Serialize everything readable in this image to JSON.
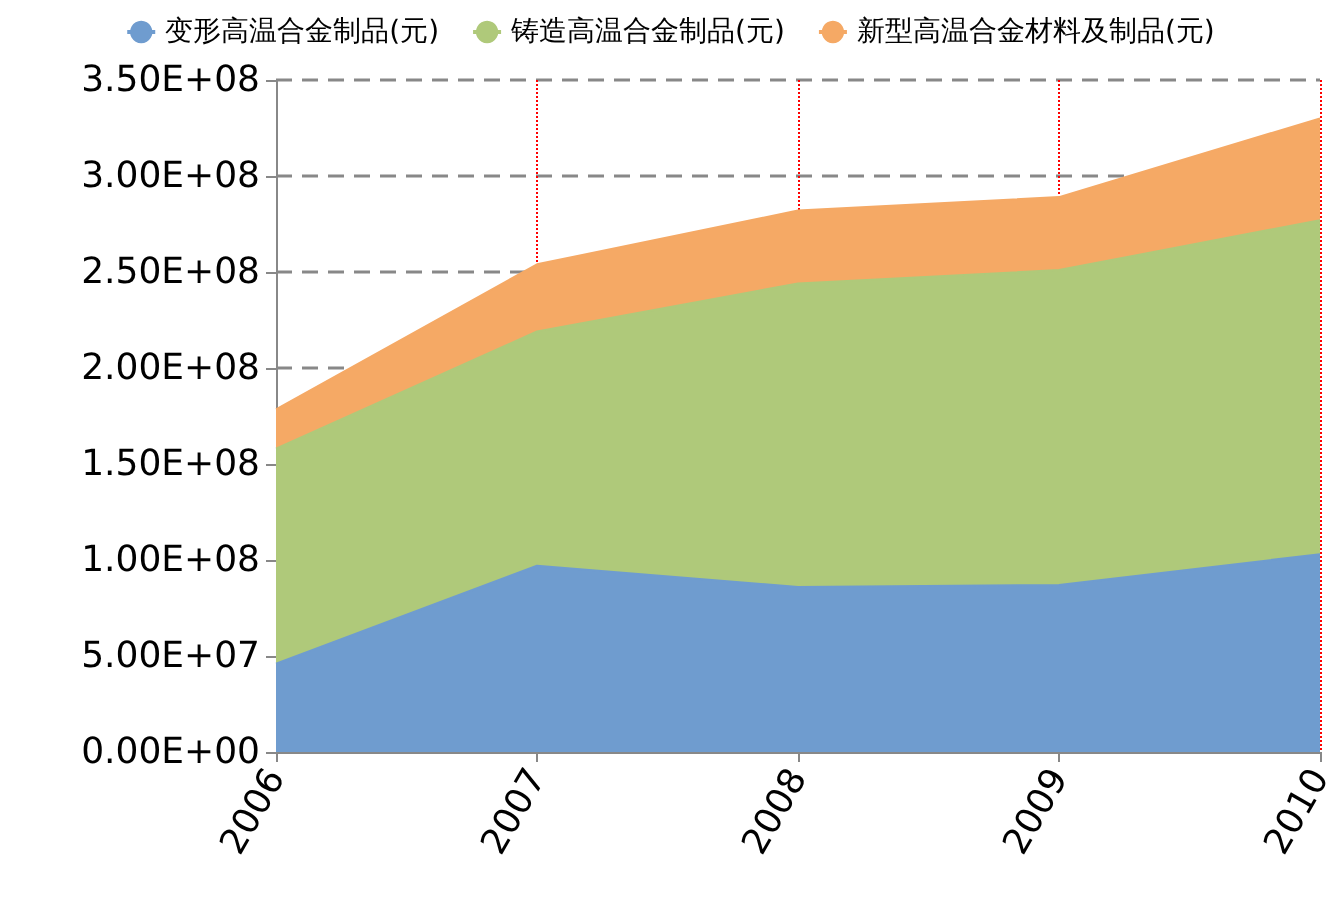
{
  "chart_data": {
    "type": "area",
    "stacked": true,
    "categories": [
      "2006",
      "2007",
      "2008",
      "2009",
      "2010"
    ],
    "series": [
      {
        "name": "变形高温合金制品(元)",
        "color": "#6f9ccf",
        "values": [
          46000000,
          97000000,
          86000000,
          87000000,
          103000000
        ]
      },
      {
        "name": "铸造高温合金制品(元)",
        "color": "#afc97a",
        "values": [
          112000000,
          122000000,
          158000000,
          164000000,
          174000000
        ]
      },
      {
        "name": "新型高温合金材料及制品(元)",
        "color": "#f5a965",
        "values": [
          20500000,
          35000000,
          38000000,
          38000000,
          53000000
        ]
      }
    ],
    "ylim": [
      0,
      350000000
    ],
    "yticks": [
      {
        "value": 0,
        "label": "0.00E+00"
      },
      {
        "value": 50000000,
        "label": "5.00E+07"
      },
      {
        "value": 100000000,
        "label": "1.00E+08"
      },
      {
        "value": 150000000,
        "label": "1.50E+08"
      },
      {
        "value": 200000000,
        "label": "2.00E+08"
      },
      {
        "value": 250000000,
        "label": "2.50E+08"
      },
      {
        "value": 300000000,
        "label": "3.00E+08"
      },
      {
        "value": 350000000,
        "label": "3.50E+08"
      }
    ],
    "grid": true,
    "legend": "top",
    "marker": "none"
  }
}
